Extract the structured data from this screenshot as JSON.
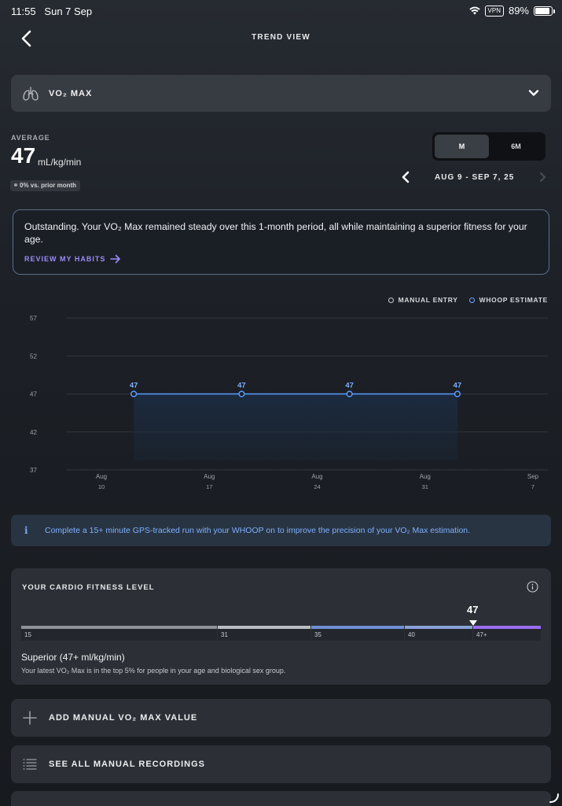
{
  "status_bar": {
    "time": "11:55",
    "date": "Sun 7 Sep",
    "vpn": "VPN",
    "battery": "89%",
    "battery_level": 0.89
  },
  "header": {
    "title": "TREND VIEW",
    "back_icon": "chevron-left-icon"
  },
  "metric_selector": {
    "label": "VO₂ MAX",
    "icon": "lungs-icon"
  },
  "summary": {
    "average_label": "AVERAGE",
    "average_value": "47",
    "unit": "mL/kg/min",
    "vs_prior": "0% vs. prior month"
  },
  "period_toggle": {
    "options": [
      "M",
      "6M"
    ],
    "selected": "M"
  },
  "date_range": {
    "label": "AUG 9 - SEP 7, 25"
  },
  "insight": {
    "text": "Outstanding. Your VO₂ Max remained steady over this 1-month period, all while maintaining a superior fitness for your age.",
    "link_label": "REVIEW MY HABITS"
  },
  "legend": {
    "manual": "MANUAL ENTRY",
    "estimate": "WHOOP ESTIMATE"
  },
  "chart_data": {
    "type": "area",
    "title": "",
    "xlabel": "",
    "ylabel": "",
    "ylim": [
      37,
      57
    ],
    "yticks": [
      "57",
      "52",
      "47",
      "42",
      "37"
    ],
    "x_ticks": [
      {
        "month": "Aug",
        "day": "10"
      },
      {
        "month": "Aug",
        "day": "17"
      },
      {
        "month": "Aug",
        "day": "24"
      },
      {
        "month": "Aug",
        "day": "31"
      },
      {
        "month": "Sep",
        "day": "7"
      }
    ],
    "series": [
      {
        "name": "WHOOP ESTIMATE",
        "x_index": [
          0.3,
          1.3,
          2.3,
          3.3
        ],
        "values": [
          47,
          47,
          47,
          47
        ],
        "labels": [
          "47",
          "47",
          "47",
          "47"
        ]
      }
    ],
    "colors": {
      "line": "#5a9bff",
      "area": "#1b2b40"
    }
  },
  "info_banner": {
    "icon": "i",
    "text": "Complete a 15+ minute GPS-tracked run with your WHOOP on to improve the precision of your VO₂ Max estimation."
  },
  "fitness": {
    "title": "YOUR CARDIO FITNESS LEVEL",
    "current_value": "47",
    "segments": [
      {
        "label": "15",
        "color": "#8f9398"
      },
      {
        "label": "31",
        "color": "#b9bdc2"
      },
      {
        "label": "35",
        "color": "#6f8fd4"
      },
      {
        "label": "40",
        "color": "#8aa0d8"
      },
      {
        "label": "47+",
        "color": "#9b6cf0"
      }
    ],
    "level_name": "Superior",
    "level_range": "(47+ ml/kg/min)",
    "description": "Your latest VO₂ Max is in the top 5% for people in your age and biological sex group."
  },
  "actions": {
    "add_manual": "ADD MANUAL VO₂ MAX VALUE",
    "see_all": "SEE ALL MANUAL RECORDINGS"
  }
}
